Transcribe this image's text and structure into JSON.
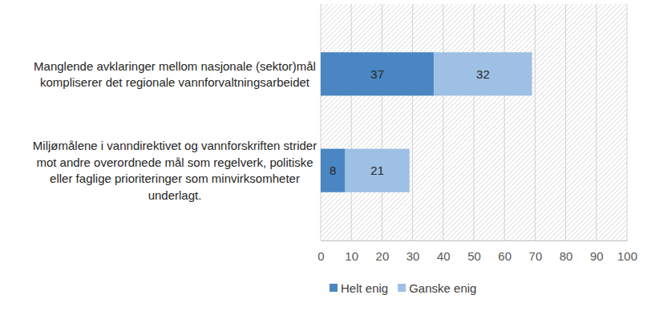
{
  "chart_data": {
    "type": "bar",
    "orientation": "horizontal",
    "stacked": true,
    "data_labels": true,
    "categories": [
      "Manglende avklaringer mellom nasjonale (sektor)mål kompliserer det regionale vannforvaltningsarbeidet",
      "Miljømålene i vanndirektivet og vannforskriften strider mot andre overordnede mål som regelverk, politiske eller faglige prioriteringer som minvirksomheter underlagt."
    ],
    "series": [
      {
        "name": "Helt enig",
        "color": "#4a86c2",
        "values": [
          37,
          8
        ]
      },
      {
        "name": "Ganske enig",
        "color": "#9dc0e4",
        "values": [
          32,
          21
        ]
      }
    ],
    "xlim": [
      0,
      100
    ],
    "xticks": [
      0,
      10,
      20,
      30,
      40,
      50,
      60,
      70,
      80,
      90,
      100
    ],
    "grid": true,
    "legend": "bottom"
  }
}
